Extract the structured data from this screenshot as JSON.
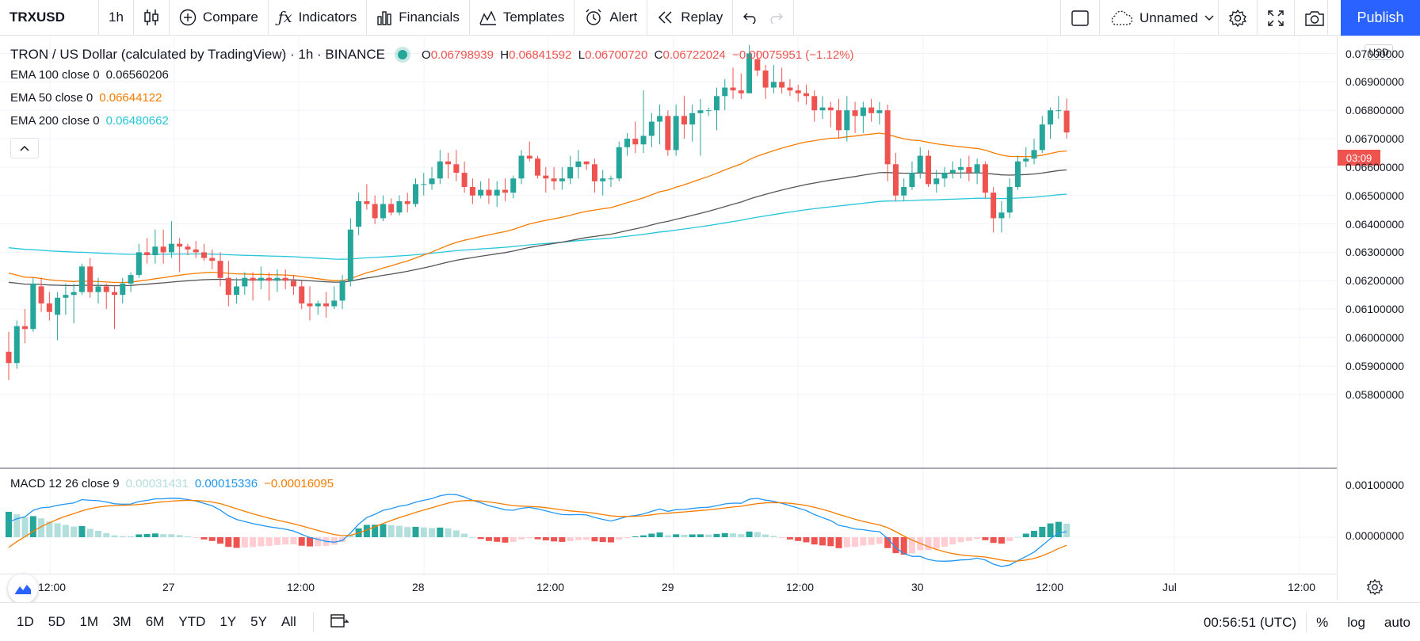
{
  "toolbar": {
    "symbol": "TRXUSD",
    "interval": "1h",
    "compare": "Compare",
    "indicators": "Indicators",
    "financials": "Financials",
    "templates": "Templates",
    "alert": "Alert",
    "replay": "Replay",
    "layout_name": "Unnamed",
    "publish": "Publish"
  },
  "legend": {
    "title": "TRON / US Dollar (calculated by TradingView) · 1h · BINANCE",
    "open_key": "O",
    "open": "0.06798939",
    "high_key": "H",
    "high": "0.06841592",
    "low_key": "L",
    "low": "0.06700720",
    "close_key": "C",
    "close": "0.06722024",
    "change": "−0.00075951 (−1.12%)"
  },
  "indicators": [
    {
      "label": "EMA 100 close 0",
      "value": "0.06560206",
      "color": "#131722"
    },
    {
      "label": "EMA 50 close 0",
      "value": "0.06644122",
      "color": "#f57c00"
    },
    {
      "label": "EMA 200 close 0",
      "value": "0.06480662",
      "color": "#26c6da"
    }
  ],
  "macd": {
    "label": "MACD 12 26 close 9",
    "hist": "0.00031431",
    "macd": "0.00015336",
    "signal": "−0.00016095"
  },
  "price_scale": {
    "currency": "USD",
    "ticks": [
      "0.07000000",
      "0.06900000",
      "0.06800000",
      "0.06700000",
      "0.06600000",
      "0.06500000",
      "0.06400000",
      "0.06300000",
      "0.06200000",
      "0.06100000",
      "0.06000000",
      "0.05900000",
      "0.05800000"
    ],
    "macd_ticks": [
      "0.00100000",
      "0.00000000"
    ],
    "countdown": "03:09"
  },
  "time_axis": [
    "12:00",
    "27",
    "12:00",
    "28",
    "12:00",
    "29",
    "12:00",
    "30",
    "12:00",
    "Jul",
    "12:00"
  ],
  "bottombar": {
    "ranges": [
      "1D",
      "5D",
      "1M",
      "3M",
      "6M",
      "YTD",
      "1Y",
      "5Y",
      "All"
    ],
    "clock": "00:56:51 (UTC)",
    "pct": "%",
    "log": "log",
    "auto": "auto"
  },
  "colors": {
    "up": "#26a69a",
    "down": "#ef5350",
    "ema50": "#f57c00",
    "ema100": "#131722",
    "ema200": "#26c6da",
    "macd_line": "#2196f3",
    "signal_line": "#f57c00"
  },
  "chart_data": {
    "type": "candlestick",
    "interval": "1h",
    "ylim": [
      0.058,
      0.0705
    ],
    "candles": [
      {
        "o": 0.0595,
        "h": 0.0602,
        "l": 0.0585,
        "c": 0.0591
      },
      {
        "o": 0.0591,
        "h": 0.0606,
        "l": 0.0589,
        "c": 0.0604
      },
      {
        "o": 0.0604,
        "h": 0.061,
        "l": 0.0598,
        "c": 0.0603
      },
      {
        "o": 0.0603,
        "h": 0.0621,
        "l": 0.0602,
        "c": 0.0619
      },
      {
        "o": 0.0618,
        "h": 0.0621,
        "l": 0.0609,
        "c": 0.0612
      },
      {
        "o": 0.0612,
        "h": 0.0616,
        "l": 0.0606,
        "c": 0.0609
      },
      {
        "o": 0.0608,
        "h": 0.0616,
        "l": 0.0599,
        "c": 0.0614
      },
      {
        "o": 0.0614,
        "h": 0.0619,
        "l": 0.0608,
        "c": 0.0615
      },
      {
        "o": 0.0615,
        "h": 0.0619,
        "l": 0.0605,
        "c": 0.0616
      },
      {
        "o": 0.0616,
        "h": 0.0626,
        "l": 0.0615,
        "c": 0.0625
      },
      {
        "o": 0.0625,
        "h": 0.0628,
        "l": 0.0614,
        "c": 0.0616
      },
      {
        "o": 0.0616,
        "h": 0.0621,
        "l": 0.0612,
        "c": 0.0618
      },
      {
        "o": 0.0618,
        "h": 0.0619,
        "l": 0.061,
        "c": 0.0616
      },
      {
        "o": 0.0616,
        "h": 0.0618,
        "l": 0.0603,
        "c": 0.0615
      },
      {
        "o": 0.0615,
        "h": 0.0621,
        "l": 0.0612,
        "c": 0.0619
      },
      {
        "o": 0.0619,
        "h": 0.0623,
        "l": 0.0616,
        "c": 0.0622
      },
      {
        "o": 0.0622,
        "h": 0.0633,
        "l": 0.0621,
        "c": 0.063
      },
      {
        "o": 0.063,
        "h": 0.0635,
        "l": 0.0626,
        "c": 0.0629
      },
      {
        "o": 0.0629,
        "h": 0.0638,
        "l": 0.0626,
        "c": 0.0632
      },
      {
        "o": 0.0632,
        "h": 0.0638,
        "l": 0.0626,
        "c": 0.063
      },
      {
        "o": 0.063,
        "h": 0.0641,
        "l": 0.0628,
        "c": 0.0633
      },
      {
        "o": 0.0633,
        "h": 0.0635,
        "l": 0.0623,
        "c": 0.0632
      },
      {
        "o": 0.0632,
        "h": 0.0633,
        "l": 0.0629,
        "c": 0.0631
      },
      {
        "o": 0.0631,
        "h": 0.0634,
        "l": 0.0628,
        "c": 0.063
      },
      {
        "o": 0.063,
        "h": 0.0633,
        "l": 0.0627,
        "c": 0.0628
      },
      {
        "o": 0.0628,
        "h": 0.0631,
        "l": 0.0624,
        "c": 0.0627
      },
      {
        "o": 0.0627,
        "h": 0.063,
        "l": 0.0618,
        "c": 0.0621
      },
      {
        "o": 0.0621,
        "h": 0.0627,
        "l": 0.0611,
        "c": 0.0615
      },
      {
        "o": 0.0615,
        "h": 0.0621,
        "l": 0.0612,
        "c": 0.0618
      },
      {
        "o": 0.0618,
        "h": 0.0623,
        "l": 0.0615,
        "c": 0.0621
      },
      {
        "o": 0.0621,
        "h": 0.0623,
        "l": 0.0613,
        "c": 0.062
      },
      {
        "o": 0.062,
        "h": 0.0625,
        "l": 0.0617,
        "c": 0.0621
      },
      {
        "o": 0.0621,
        "h": 0.0623,
        "l": 0.0613,
        "c": 0.062
      },
      {
        "o": 0.062,
        "h": 0.0624,
        "l": 0.0616,
        "c": 0.0621
      },
      {
        "o": 0.0621,
        "h": 0.0624,
        "l": 0.0617,
        "c": 0.062
      },
      {
        "o": 0.062,
        "h": 0.0622,
        "l": 0.0615,
        "c": 0.0618
      },
      {
        "o": 0.0618,
        "h": 0.062,
        "l": 0.061,
        "c": 0.0612
      },
      {
        "o": 0.0612,
        "h": 0.0618,
        "l": 0.0606,
        "c": 0.0611
      },
      {
        "o": 0.0611,
        "h": 0.0613,
        "l": 0.0608,
        "c": 0.0612
      },
      {
        "o": 0.0612,
        "h": 0.0616,
        "l": 0.0607,
        "c": 0.0611
      },
      {
        "o": 0.0611,
        "h": 0.0618,
        "l": 0.061,
        "c": 0.0613
      },
      {
        "o": 0.0613,
        "h": 0.0622,
        "l": 0.061,
        "c": 0.062
      },
      {
        "o": 0.062,
        "h": 0.0642,
        "l": 0.0618,
        "c": 0.0638
      },
      {
        "o": 0.0639,
        "h": 0.0651,
        "l": 0.0636,
        "c": 0.0648
      },
      {
        "o": 0.0648,
        "h": 0.0654,
        "l": 0.0645,
        "c": 0.0647
      },
      {
        "o": 0.0647,
        "h": 0.065,
        "l": 0.064,
        "c": 0.0642
      },
      {
        "o": 0.0642,
        "h": 0.065,
        "l": 0.0641,
        "c": 0.0647
      },
      {
        "o": 0.0647,
        "h": 0.0649,
        "l": 0.0643,
        "c": 0.0644
      },
      {
        "o": 0.0644,
        "h": 0.065,
        "l": 0.0643,
        "c": 0.0648
      },
      {
        "o": 0.0648,
        "h": 0.0651,
        "l": 0.0644,
        "c": 0.0647
      },
      {
        "o": 0.0647,
        "h": 0.0656,
        "l": 0.0646,
        "c": 0.0654
      },
      {
        "o": 0.0654,
        "h": 0.0658,
        "l": 0.065,
        "c": 0.0654
      },
      {
        "o": 0.0654,
        "h": 0.066,
        "l": 0.0652,
        "c": 0.0656
      },
      {
        "o": 0.0656,
        "h": 0.0666,
        "l": 0.0654,
        "c": 0.0662
      },
      {
        "o": 0.0662,
        "h": 0.0665,
        "l": 0.0656,
        "c": 0.0661
      },
      {
        "o": 0.0661,
        "h": 0.0666,
        "l": 0.0655,
        "c": 0.0658
      },
      {
        "o": 0.0658,
        "h": 0.0662,
        "l": 0.0651,
        "c": 0.0653
      },
      {
        "o": 0.0653,
        "h": 0.0656,
        "l": 0.0647,
        "c": 0.065
      },
      {
        "o": 0.065,
        "h": 0.0655,
        "l": 0.0649,
        "c": 0.0652
      },
      {
        "o": 0.0652,
        "h": 0.0656,
        "l": 0.0647,
        "c": 0.065
      },
      {
        "o": 0.065,
        "h": 0.0655,
        "l": 0.0646,
        "c": 0.0652
      },
      {
        "o": 0.0652,
        "h": 0.0656,
        "l": 0.0648,
        "c": 0.0651
      },
      {
        "o": 0.0651,
        "h": 0.0657,
        "l": 0.0649,
        "c": 0.0656
      },
      {
        "o": 0.0656,
        "h": 0.0666,
        "l": 0.0654,
        "c": 0.0664
      },
      {
        "o": 0.0664,
        "h": 0.0669,
        "l": 0.0662,
        "c": 0.0663
      },
      {
        "o": 0.0663,
        "h": 0.0664,
        "l": 0.0656,
        "c": 0.0657
      },
      {
        "o": 0.0657,
        "h": 0.066,
        "l": 0.0651,
        "c": 0.0656
      },
      {
        "o": 0.0656,
        "h": 0.066,
        "l": 0.0652,
        "c": 0.0655
      },
      {
        "o": 0.0655,
        "h": 0.066,
        "l": 0.0652,
        "c": 0.0656
      },
      {
        "o": 0.0656,
        "h": 0.0664,
        "l": 0.0654,
        "c": 0.066
      },
      {
        "o": 0.066,
        "h": 0.0666,
        "l": 0.0656,
        "c": 0.0662
      },
      {
        "o": 0.0662,
        "h": 0.0662,
        "l": 0.0659,
        "c": 0.0661
      },
      {
        "o": 0.0661,
        "h": 0.0663,
        "l": 0.0651,
        "c": 0.0655
      },
      {
        "o": 0.0655,
        "h": 0.0659,
        "l": 0.065,
        "c": 0.0656
      },
      {
        "o": 0.0656,
        "h": 0.0657,
        "l": 0.0653,
        "c": 0.0656
      },
      {
        "o": 0.0656,
        "h": 0.0669,
        "l": 0.0655,
        "c": 0.0667
      },
      {
        "o": 0.0667,
        "h": 0.0672,
        "l": 0.0664,
        "c": 0.067
      },
      {
        "o": 0.067,
        "h": 0.0676,
        "l": 0.0665,
        "c": 0.0668
      },
      {
        "o": 0.0668,
        "h": 0.0687,
        "l": 0.0665,
        "c": 0.0671
      },
      {
        "o": 0.0671,
        "h": 0.0679,
        "l": 0.0667,
        "c": 0.0676
      },
      {
        "o": 0.0676,
        "h": 0.0682,
        "l": 0.0668,
        "c": 0.0678
      },
      {
        "o": 0.0678,
        "h": 0.068,
        "l": 0.0664,
        "c": 0.0666
      },
      {
        "o": 0.0666,
        "h": 0.0682,
        "l": 0.0664,
        "c": 0.0678
      },
      {
        "o": 0.0678,
        "h": 0.0685,
        "l": 0.067,
        "c": 0.0675
      },
      {
        "o": 0.0675,
        "h": 0.0682,
        "l": 0.0669,
        "c": 0.0679
      },
      {
        "o": 0.0679,
        "h": 0.0684,
        "l": 0.0664,
        "c": 0.068
      },
      {
        "o": 0.068,
        "h": 0.0681,
        "l": 0.0678,
        "c": 0.068
      },
      {
        "o": 0.068,
        "h": 0.0688,
        "l": 0.0673,
        "c": 0.0685
      },
      {
        "o": 0.0685,
        "h": 0.0691,
        "l": 0.068,
        "c": 0.0688
      },
      {
        "o": 0.0688,
        "h": 0.0695,
        "l": 0.0684,
        "c": 0.0687
      },
      {
        "o": 0.0687,
        "h": 0.0693,
        "l": 0.0684,
        "c": 0.0686
      },
      {
        "o": 0.0686,
        "h": 0.0703,
        "l": 0.0686,
        "c": 0.07
      },
      {
        "o": 0.0698,
        "h": 0.0701,
        "l": 0.0692,
        "c": 0.0694
      },
      {
        "o": 0.0694,
        "h": 0.0696,
        "l": 0.0684,
        "c": 0.0688
      },
      {
        "o": 0.0688,
        "h": 0.0696,
        "l": 0.0686,
        "c": 0.069
      },
      {
        "o": 0.069,
        "h": 0.0695,
        "l": 0.0686,
        "c": 0.0688
      },
      {
        "o": 0.0688,
        "h": 0.0691,
        "l": 0.0685,
        "c": 0.0687
      },
      {
        "o": 0.0687,
        "h": 0.0689,
        "l": 0.0683,
        "c": 0.0686
      },
      {
        "o": 0.0686,
        "h": 0.0689,
        "l": 0.0682,
        "c": 0.0685
      },
      {
        "o": 0.0685,
        "h": 0.0687,
        "l": 0.0676,
        "c": 0.068
      },
      {
        "o": 0.068,
        "h": 0.0685,
        "l": 0.0677,
        "c": 0.0681
      },
      {
        "o": 0.0681,
        "h": 0.0683,
        "l": 0.0674,
        "c": 0.068
      },
      {
        "o": 0.068,
        "h": 0.0684,
        "l": 0.067,
        "c": 0.0673
      },
      {
        "o": 0.0673,
        "h": 0.0685,
        "l": 0.0669,
        "c": 0.068
      },
      {
        "o": 0.068,
        "h": 0.0683,
        "l": 0.0672,
        "c": 0.0678
      },
      {
        "o": 0.0678,
        "h": 0.0683,
        "l": 0.0672,
        "c": 0.0681
      },
      {
        "o": 0.0681,
        "h": 0.0684,
        "l": 0.0676,
        "c": 0.0679
      },
      {
        "o": 0.0679,
        "h": 0.0683,
        "l": 0.0675,
        "c": 0.068
      },
      {
        "o": 0.068,
        "h": 0.0682,
        "l": 0.0655,
        "c": 0.0661
      },
      {
        "o": 0.0661,
        "h": 0.0665,
        "l": 0.0648,
        "c": 0.065
      },
      {
        "o": 0.065,
        "h": 0.0656,
        "l": 0.0648,
        "c": 0.0653
      },
      {
        "o": 0.0653,
        "h": 0.0662,
        "l": 0.0652,
        "c": 0.0658
      },
      {
        "o": 0.0658,
        "h": 0.0667,
        "l": 0.0656,
        "c": 0.0664
      },
      {
        "o": 0.0664,
        "h": 0.0666,
        "l": 0.0653,
        "c": 0.0654
      },
      {
        "o": 0.0654,
        "h": 0.0659,
        "l": 0.0651,
        "c": 0.0656
      },
      {
        "o": 0.0656,
        "h": 0.066,
        "l": 0.0653,
        "c": 0.0658
      },
      {
        "o": 0.0658,
        "h": 0.0662,
        "l": 0.0656,
        "c": 0.0659
      },
      {
        "o": 0.0659,
        "h": 0.0663,
        "l": 0.0656,
        "c": 0.066
      },
      {
        "o": 0.066,
        "h": 0.0664,
        "l": 0.0655,
        "c": 0.0658
      },
      {
        "o": 0.0658,
        "h": 0.0663,
        "l": 0.0654,
        "c": 0.0661
      },
      {
        "o": 0.0661,
        "h": 0.0662,
        "l": 0.0649,
        "c": 0.0651
      },
      {
        "o": 0.0651,
        "h": 0.0653,
        "l": 0.0637,
        "c": 0.0642
      },
      {
        "o": 0.0642,
        "h": 0.0648,
        "l": 0.0637,
        "c": 0.0644
      },
      {
        "o": 0.0644,
        "h": 0.0656,
        "l": 0.0642,
        "c": 0.0653
      },
      {
        "o": 0.0653,
        "h": 0.0664,
        "l": 0.0652,
        "c": 0.0662
      },
      {
        "o": 0.0662,
        "h": 0.0667,
        "l": 0.066,
        "c": 0.0663
      },
      {
        "o": 0.0663,
        "h": 0.067,
        "l": 0.0661,
        "c": 0.0666
      },
      {
        "o": 0.0666,
        "h": 0.0678,
        "l": 0.0665,
        "c": 0.0675
      },
      {
        "o": 0.0675,
        "h": 0.0681,
        "l": 0.067,
        "c": 0.068
      },
      {
        "o": 0.068,
        "h": 0.0685,
        "l": 0.0677,
        "c": 0.068
      },
      {
        "o": 0.06798939,
        "h": 0.06841592,
        "l": 0.0670072,
        "c": 0.06722024
      }
    ],
    "ema_series": [
      "EMA 50 close 0",
      "EMA 100 close 0",
      "EMA 200 close 0"
    ],
    "macd_series": [
      "MACD",
      "Signal",
      "Histogram"
    ]
  }
}
